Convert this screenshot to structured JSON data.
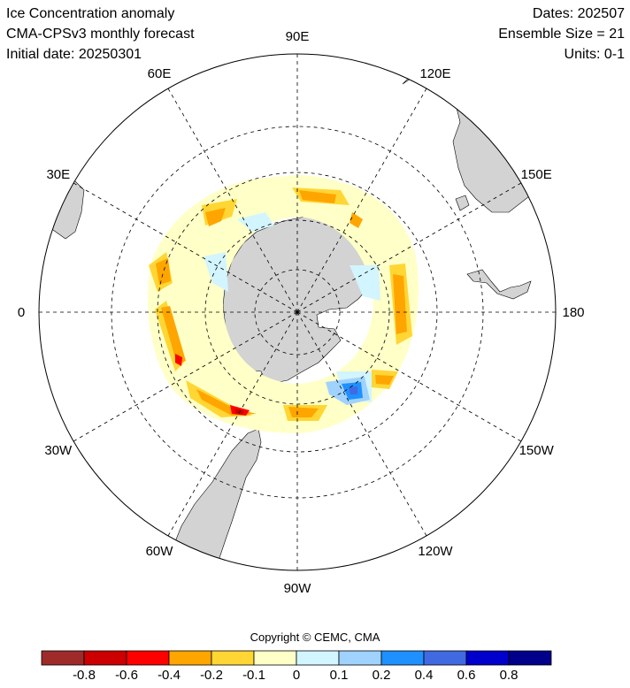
{
  "header": {
    "title": "Ice Concentration anomaly",
    "model": "CMA-CPSv3 monthly forecast",
    "initial_date": "Initial date: 20250301",
    "dates": "Dates: 202507",
    "ensemble": "Ensemble Size = 21",
    "units": "Units: 0-1"
  },
  "map": {
    "projection": "south-polar-stereographic",
    "longitude_labels": [
      {
        "text": "90E",
        "lon": 90
      },
      {
        "text": "120E",
        "lon": 120
      },
      {
        "text": "150E",
        "lon": 150
      },
      {
        "text": "180",
        "lon": 180
      },
      {
        "text": "150W",
        "lon": -150
      },
      {
        "text": "120W",
        "lon": -120
      },
      {
        "text": "90W",
        "lon": -90
      },
      {
        "text": "60W",
        "lon": -60
      },
      {
        "text": "30W",
        "lon": -30
      },
      {
        "text": "0",
        "lon": 0
      },
      {
        "text": "30E",
        "lon": 30
      },
      {
        "text": "60E",
        "lon": 60
      }
    ],
    "colors": {
      "land": "#d3d3d3",
      "ocean": "#ffffff",
      "grid": "#000000"
    }
  },
  "copyright": "Copyright © CEMC, CMA",
  "colorbar": {
    "colors": [
      "#9e2a2a",
      "#cc0000",
      "#ff0000",
      "#ffa500",
      "#ffd633",
      "#ffffc8",
      "#d2f5ff",
      "#a0d2ff",
      "#1e90ff",
      "#4169e1",
      "#0000cd",
      "#00008b"
    ],
    "tick_labels": [
      "-0.8",
      "-0.6",
      "-0.4",
      "-0.2",
      "-0.1",
      "0",
      "0.1",
      "0.2",
      "0.4",
      "0.6",
      "0.8"
    ]
  }
}
